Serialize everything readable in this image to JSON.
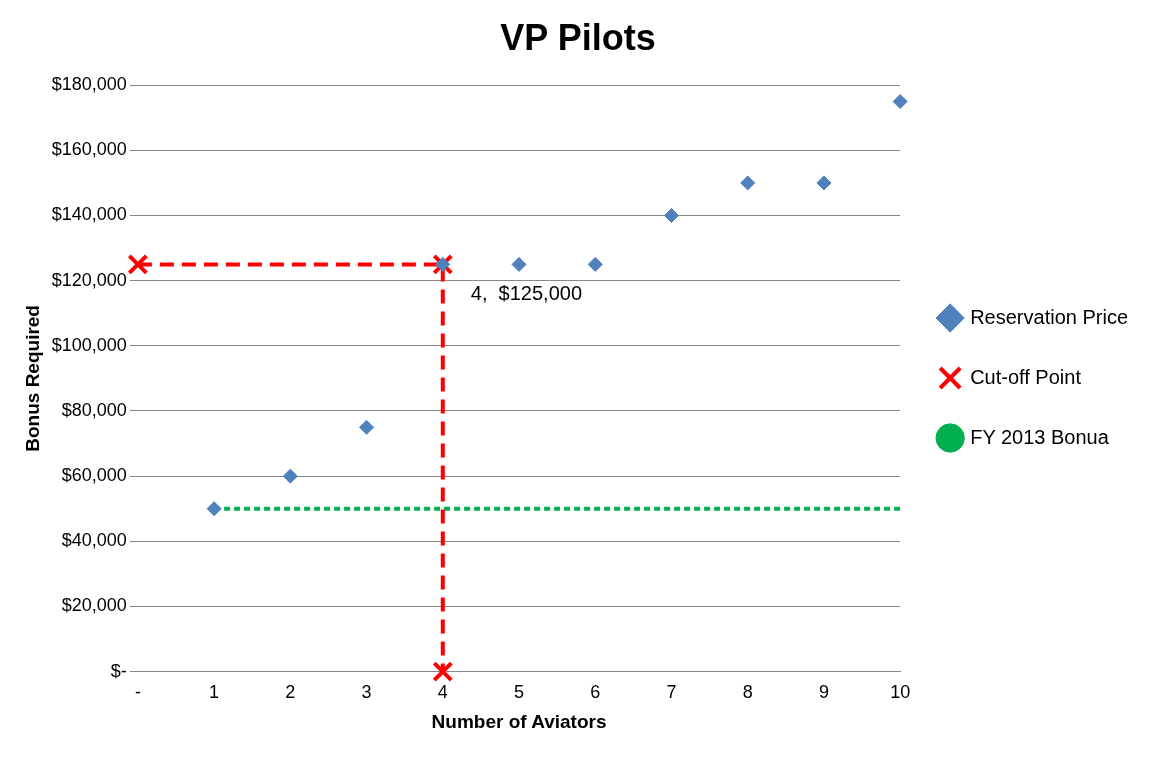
{
  "chart_data": {
    "type": "scatter",
    "title": "VP Pilots",
    "xlabel": "Number of Aviators",
    "ylabel": "Bonus Required",
    "xlim": [
      0,
      10
    ],
    "xticks": [
      {
        "value": 0,
        "label": "-"
      },
      1,
      2,
      3,
      4,
      5,
      6,
      7,
      8,
      9,
      10
    ],
    "ylim": [
      0,
      180000
    ],
    "yticks": [
      {
        "value": 0,
        "label": "$-"
      },
      {
        "value": 20000,
        "label": "$20,000"
      },
      {
        "value": 40000,
        "label": "$40,000"
      },
      {
        "value": 60000,
        "label": "$60,000"
      },
      {
        "value": 80000,
        "label": "$80,000"
      },
      {
        "value": 100000,
        "label": "$100,000"
      },
      {
        "value": 120000,
        "label": "$120,000"
      },
      {
        "value": 140000,
        "label": "$140,000"
      },
      {
        "value": 160000,
        "label": "$160,000"
      },
      {
        "value": 180000,
        "label": "$180,000"
      }
    ],
    "grid": "y",
    "legend": "right",
    "series": [
      {
        "name": "Reservation Price",
        "color": "#4f81bd",
        "marker": "diamond",
        "x": [
          1,
          2,
          3,
          4,
          5,
          6,
          7,
          8,
          9,
          10
        ],
        "values": [
          50000,
          60000,
          75000,
          125000,
          125000,
          125000,
          140000,
          150000,
          150000,
          175000
        ]
      },
      {
        "name": "Cut-off Point",
        "type": "line",
        "color": "#ff0000",
        "marker": "cross",
        "line_style": "dashed",
        "x": [
          0,
          4,
          4
        ],
        "values": [
          125000,
          125000,
          0
        ]
      },
      {
        "name": "FY 2013 Bonua",
        "type": "line",
        "color": "#00b050",
        "marker": "none",
        "line_style": "dotted",
        "x": [
          1,
          10
        ],
        "values": [
          50000,
          50000
        ]
      }
    ],
    "annotations": [
      {
        "text": "4,  $125,000",
        "x": 4,
        "y": 125000
      }
    ]
  }
}
